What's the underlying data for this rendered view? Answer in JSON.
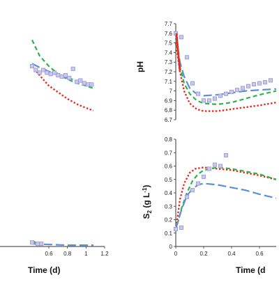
{
  "chart_data": [
    {
      "type": "line",
      "panel": "top-left",
      "xlim": [
        0,
        1.2
      ],
      "xticks": [],
      "yticks": [],
      "xlabel": "",
      "ylabel": "",
      "series": [
        {
          "name": "",
          "kind": "markers",
          "color": "#9b9bd6",
          "x": [
            0.42,
            0.46,
            0.5,
            0.54,
            0.58,
            0.62,
            0.66,
            0.7,
            0.74,
            0.78,
            0.82,
            0.86,
            0.9,
            0.94,
            0.98,
            1.02,
            1.06
          ],
          "y": [
            0.6,
            0.57,
            0.55,
            0.57,
            0.55,
            0.54,
            0.55,
            0.53,
            0.52,
            0.53,
            0.51,
            0.58,
            0.48,
            0.49,
            0.47,
            0.46,
            0.46
          ]
        },
        {
          "name": "",
          "kind": "line",
          "style": "long-dash",
          "color": "#5b8fd6",
          "x": [
            0.42,
            0.5,
            0.6,
            0.7,
            0.8,
            0.9,
            1.0,
            1.08
          ],
          "y": [
            0.62,
            0.59,
            0.56,
            0.53,
            0.51,
            0.49,
            0.47,
            0.46
          ]
        },
        {
          "name": "",
          "kind": "line",
          "style": "dash",
          "color": "#2eb24a",
          "x": [
            0.42,
            0.5,
            0.6,
            0.7,
            0.8,
            0.9,
            1.0,
            1.08
          ],
          "y": [
            0.8,
            0.68,
            0.6,
            0.54,
            0.5,
            0.47,
            0.45,
            0.43
          ]
        },
        {
          "name": "",
          "kind": "line",
          "style": "dot",
          "color": "#e8291c",
          "x": [
            0.42,
            0.5,
            0.6,
            0.7,
            0.8,
            0.9,
            1.0,
            1.08
          ],
          "y": [
            0.6,
            0.53,
            0.45,
            0.4,
            0.35,
            0.31,
            0.28,
            0.26
          ]
        }
      ]
    },
    {
      "type": "line",
      "panel": "top-right",
      "ylabel": "pH",
      "xlim": [
        0,
        0.72
      ],
      "ylim": [
        6.7,
        7.7
      ],
      "xticks": [],
      "yticks": [
        "6.7",
        "6.8",
        "6.9",
        "7",
        "7.1",
        "7.2",
        "7.3",
        "7.4",
        "7.5",
        "7.6",
        "7.7"
      ],
      "series": [
        {
          "name": "",
          "kind": "markers",
          "color": "#9b9bd6",
          "x": [
            0.0,
            0.04,
            0.08,
            0.12,
            0.16,
            0.2,
            0.24,
            0.28,
            0.32,
            0.36,
            0.4,
            0.44,
            0.48,
            0.52,
            0.56,
            0.6,
            0.64,
            0.68
          ],
          "y": [
            7.6,
            7.56,
            7.35,
            7.08,
            6.97,
            6.9,
            6.9,
            6.92,
            6.95,
            6.97,
            6.99,
            7.01,
            7.03,
            7.05,
            7.07,
            7.08,
            7.09,
            7.11
          ]
        },
        {
          "name": "",
          "kind": "line",
          "style": "long-dash",
          "color": "#5b8fd6",
          "x": [
            0.0,
            0.03,
            0.06,
            0.1,
            0.14,
            0.2,
            0.3,
            0.4,
            0.5,
            0.6,
            0.72
          ],
          "y": [
            7.58,
            7.3,
            7.15,
            7.03,
            6.98,
            6.95,
            6.96,
            6.98,
            7.0,
            7.01,
            7.02
          ]
        },
        {
          "name": "",
          "kind": "line",
          "style": "dash",
          "color": "#2eb24a",
          "x": [
            0.0,
            0.03,
            0.06,
            0.1,
            0.15,
            0.2,
            0.3,
            0.4,
            0.5,
            0.6,
            0.72
          ],
          "y": [
            7.55,
            7.25,
            7.08,
            6.97,
            6.9,
            6.87,
            6.86,
            6.88,
            6.92,
            6.96,
            7.0
          ]
        },
        {
          "name": "",
          "kind": "line",
          "style": "dot",
          "color": "#e8291c",
          "x": [
            0.0,
            0.03,
            0.06,
            0.1,
            0.15,
            0.2,
            0.3,
            0.4,
            0.5,
            0.6,
            0.72
          ],
          "y": [
            7.5,
            7.2,
            7.0,
            6.87,
            6.81,
            6.79,
            6.79,
            6.81,
            6.83,
            6.85,
            6.88
          ]
        }
      ]
    },
    {
      "type": "line",
      "panel": "bottom-left",
      "xlabel": "Time (d)",
      "xlim": [
        0,
        1.2
      ],
      "xticks": [
        "0.6",
        "0.8",
        "1",
        "1.2"
      ],
      "yticks": [],
      "series": [
        {
          "name": "",
          "kind": "markers",
          "color": "#9b9bd6",
          "x": [
            0.42,
            0.48,
            0.52
          ],
          "y": [
            0.03,
            0.02,
            0.02
          ]
        },
        {
          "name": "",
          "kind": "line",
          "style": "long-dash",
          "color": "#5b8fd6",
          "x": [
            0.42,
            0.6,
            0.8,
            1.0,
            1.08
          ],
          "y": [
            0.02,
            0.015,
            0.01,
            0.01,
            0.01
          ]
        },
        {
          "name": "",
          "kind": "line",
          "style": "dash",
          "color": "#2eb24a",
          "x": [
            0.42,
            0.46,
            0.5
          ],
          "y": [
            0.04,
            0.03,
            0.02
          ]
        },
        {
          "name": "",
          "kind": "line",
          "style": "dot",
          "color": "#e8291c",
          "x": [
            0.42,
            0.46,
            0.5
          ],
          "y": [
            0.03,
            0.02,
            0.015
          ]
        }
      ]
    },
    {
      "type": "line",
      "panel": "bottom-right",
      "ylabel_main": "S",
      "ylabel_sub": "2",
      "ylabel_unit": " (g L",
      "ylabel_sup": "-1",
      "ylabel_close": ")",
      "xlabel": "Time (d",
      "xlim": [
        0,
        0.72
      ],
      "ylim": [
        0,
        0.8
      ],
      "xticks": [
        "0",
        "0.2",
        "0.4",
        "0.6"
      ],
      "yticks": [
        "0",
        "0.1",
        "0.2",
        "0.3",
        "0.4",
        "0.5",
        "0.6",
        "0.7",
        "0.8"
      ],
      "series": [
        {
          "name": "",
          "kind": "markers",
          "color": "#9b9bd6",
          "x": [
            0.0,
            0.04,
            0.08,
            0.12,
            0.16,
            0.2,
            0.24,
            0.28,
            0.32,
            0.36
          ],
          "y": [
            0.13,
            0.14,
            0.37,
            0.42,
            0.47,
            0.52,
            0.58,
            0.61,
            0.6,
            0.68
          ]
        },
        {
          "name": "",
          "kind": "line",
          "style": "long-dash",
          "color": "#5b8fd6",
          "x": [
            0.0,
            0.04,
            0.08,
            0.12,
            0.16,
            0.2,
            0.3,
            0.4,
            0.5,
            0.6,
            0.72
          ],
          "y": [
            0.13,
            0.27,
            0.38,
            0.43,
            0.46,
            0.47,
            0.46,
            0.44,
            0.42,
            0.39,
            0.36
          ]
        },
        {
          "name": "",
          "kind": "line",
          "style": "dash",
          "color": "#2eb24a",
          "x": [
            0.0,
            0.04,
            0.08,
            0.12,
            0.16,
            0.2,
            0.3,
            0.4,
            0.5,
            0.6,
            0.72
          ],
          "y": [
            0.12,
            0.28,
            0.4,
            0.49,
            0.54,
            0.57,
            0.59,
            0.58,
            0.56,
            0.54,
            0.5
          ]
        },
        {
          "name": "",
          "kind": "line",
          "style": "dot",
          "color": "#e8291c",
          "x": [
            0.0,
            0.03,
            0.06,
            0.1,
            0.14,
            0.2,
            0.3,
            0.4,
            0.5,
            0.6,
            0.72
          ],
          "y": [
            0.12,
            0.35,
            0.47,
            0.55,
            0.58,
            0.59,
            0.58,
            0.57,
            0.55,
            0.53,
            0.5
          ]
        }
      ]
    }
  ]
}
